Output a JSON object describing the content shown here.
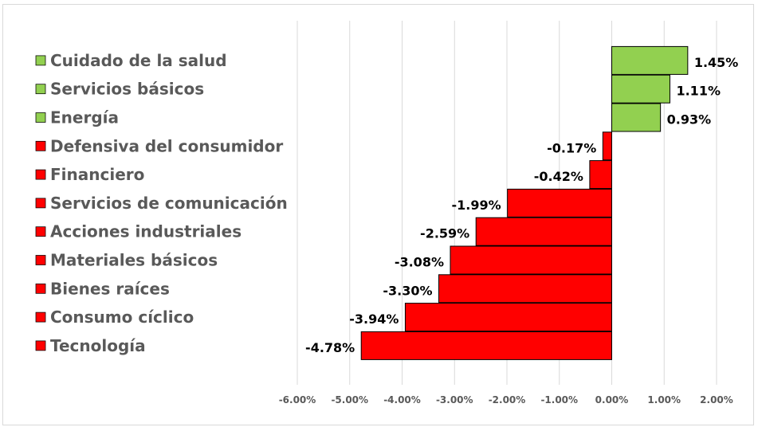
{
  "chart_data": {
    "type": "bar",
    "orientation": "horizontal",
    "title": "",
    "xlabel": "",
    "ylabel": "",
    "xlim": [
      -0.06,
      0.02
    ],
    "tick_step": 0.01,
    "grid": true,
    "legend_position": "left",
    "positive_color": "#92d050",
    "negative_color": "#ff0000",
    "categories": [
      "Cuidado de la salud",
      "Servicios básicos",
      "Energía",
      "Defensiva del consumidor",
      "Financiero",
      "Servicios de comunicación",
      "Acciones industriales",
      "Materiales básicos",
      "Bienes raíces",
      "Consumo cíclico",
      "Tecnología"
    ],
    "values": [
      0.0145,
      0.0111,
      0.0093,
      -0.0017,
      -0.0042,
      -0.0199,
      -0.0259,
      -0.0308,
      -0.033,
      -0.0394,
      -0.0478
    ],
    "data_labels": [
      "1.45%",
      "1.11%",
      "0.93%",
      "-0.17%",
      "-0.42%",
      "-1.99%",
      "-2.59%",
      "-3.08%",
      "-3.30%",
      "-3.94%",
      "-4.78%"
    ],
    "tick_labels": [
      "-6.00%",
      "-5.00%",
      "-4.00%",
      "-3.00%",
      "-2.00%",
      "-1.00%",
      "0.00%",
      "1.00%",
      "2.00%"
    ]
  }
}
